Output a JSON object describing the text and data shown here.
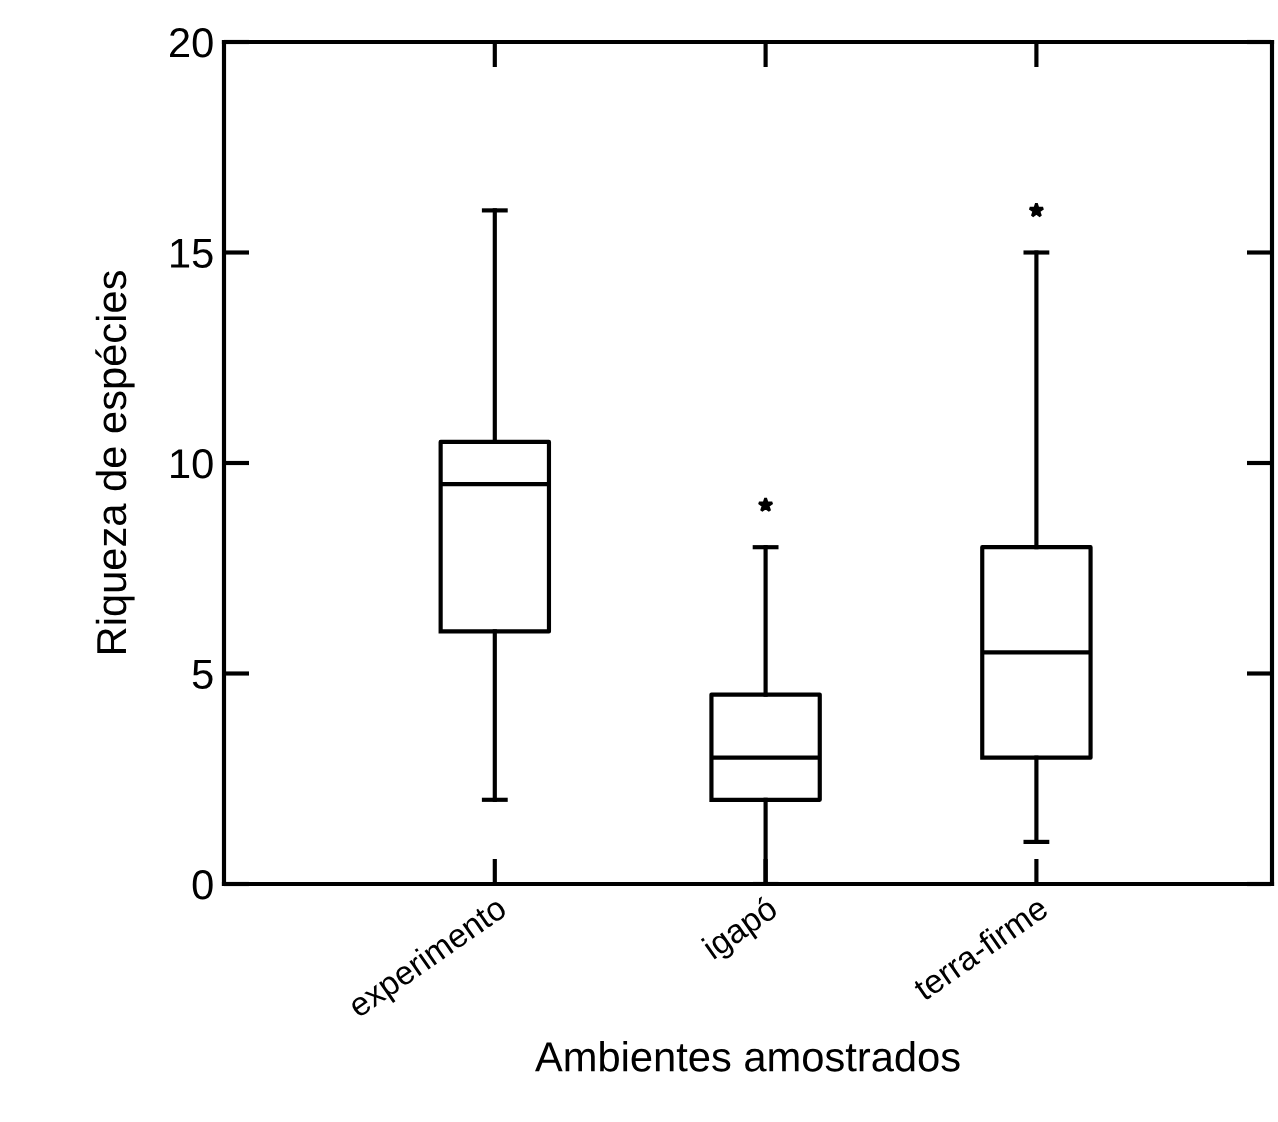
{
  "chart_data": {
    "type": "box",
    "xlabel": "Ambientes amostrados",
    "ylabel": "Riqueza de espécies",
    "categories": [
      "experimento",
      "igapó",
      "terra-firme"
    ],
    "boxes": [
      {
        "low": 2,
        "q1": 6,
        "median": 9.5,
        "q3": 10.5,
        "high": 16
      },
      {
        "low": 0,
        "q1": 2,
        "median": 3,
        "q3": 4.5,
        "high": 8,
        "outliers": [
          9
        ]
      },
      {
        "low": 1,
        "q1": 3,
        "median": 5.5,
        "q3": 8,
        "high": 15,
        "outliers": [
          16
        ]
      }
    ],
    "ylim": [
      0,
      20
    ],
    "yticks": [
      0,
      5,
      10,
      15,
      20
    ],
    "grid": false
  }
}
